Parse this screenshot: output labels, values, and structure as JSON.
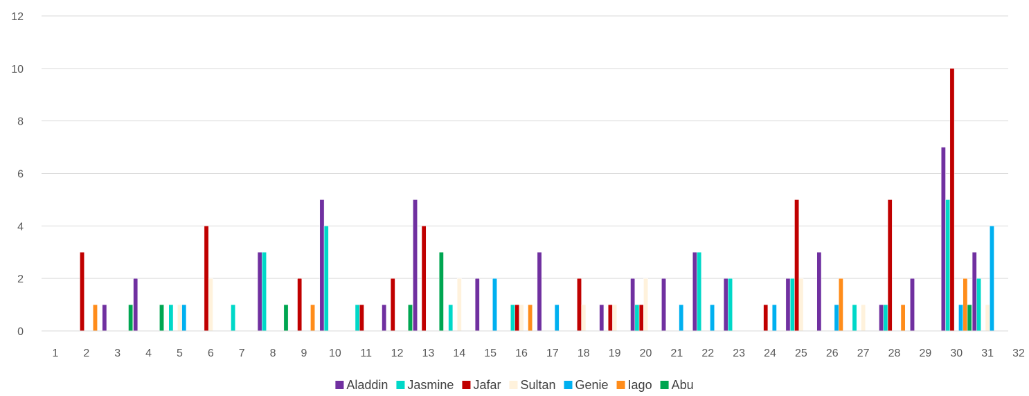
{
  "chart_data": {
    "type": "bar",
    "title": "",
    "xlabel": "",
    "ylabel": "",
    "categories": [
      "1",
      "2",
      "3",
      "4",
      "5",
      "6",
      "7",
      "8",
      "9",
      "10",
      "11",
      "12",
      "13",
      "14",
      "15",
      "16",
      "17",
      "18",
      "19",
      "20",
      "21",
      "22",
      "23",
      "24",
      "25",
      "26",
      "27",
      "28",
      "29",
      "30",
      "31",
      "32"
    ],
    "ylim": [
      0,
      12
    ],
    "yticks": [
      "0",
      "2",
      "4",
      "6",
      "8",
      "10",
      "12"
    ],
    "grid": true,
    "legend": "bottom",
    "series": [
      {
        "name": "Aladdin",
        "color": "#7030A0",
        "values": [
          0,
          0,
          1,
          2,
          0,
          0,
          0,
          3,
          0,
          5,
          0,
          1,
          5,
          0,
          2,
          0,
          3,
          0,
          1,
          2,
          2,
          3,
          2,
          0,
          2,
          3,
          0,
          1,
          2,
          7,
          3,
          0
        ]
      },
      {
        "name": "Jasmine",
        "color": "#00D8C8",
        "values": [
          0,
          0,
          0,
          0,
          1,
          0,
          1,
          3,
          0,
          4,
          1,
          0,
          0,
          1,
          0,
          1,
          0,
          0,
          0,
          1,
          0,
          3,
          2,
          0,
          2,
          0,
          1,
          1,
          0,
          5,
          2,
          0
        ]
      },
      {
        "name": "Jafar",
        "color": "#C00000",
        "values": [
          0,
          3,
          0,
          0,
          0,
          4,
          0,
          0,
          2,
          0,
          1,
          2,
          4,
          0,
          0,
          1,
          0,
          2,
          1,
          1,
          0,
          0,
          0,
          1,
          5,
          0,
          0,
          5,
          0,
          10,
          0,
          0
        ]
      },
      {
        "name": "Sultan",
        "color": "#FFF2DC",
        "values": [
          0,
          0,
          0,
          0,
          1,
          2,
          0,
          0,
          0,
          0,
          0,
          0,
          0,
          2,
          0,
          1,
          0,
          1,
          1,
          2,
          0,
          0,
          0,
          0,
          2,
          0,
          1,
          0,
          0,
          0,
          1,
          0
        ]
      },
      {
        "name": "Genie",
        "color": "#00B0F0",
        "values": [
          0,
          0,
          0,
          0,
          1,
          0,
          0,
          0,
          0,
          0,
          0,
          0,
          0,
          0,
          2,
          0,
          1,
          0,
          0,
          0,
          1,
          1,
          0,
          1,
          0,
          1,
          0,
          0,
          0,
          1,
          4,
          0
        ]
      },
      {
        "name": "Iago",
        "color": "#FF8C1A",
        "values": [
          0,
          1,
          0,
          0,
          0,
          0,
          0,
          0,
          1,
          0,
          0,
          0,
          0,
          0,
          0,
          1,
          0,
          0,
          0,
          0,
          0,
          0,
          0,
          0,
          0,
          2,
          0,
          1,
          0,
          2,
          0,
          0
        ]
      },
      {
        "name": "Abu",
        "color": "#00A651",
        "values": [
          0,
          0,
          1,
          1,
          0,
          0,
          0,
          1,
          0,
          0,
          0,
          1,
          3,
          0,
          0,
          0,
          0,
          0,
          0,
          0,
          0,
          0,
          0,
          0,
          0,
          0,
          0,
          0,
          0,
          1,
          0,
          0
        ]
      }
    ]
  }
}
